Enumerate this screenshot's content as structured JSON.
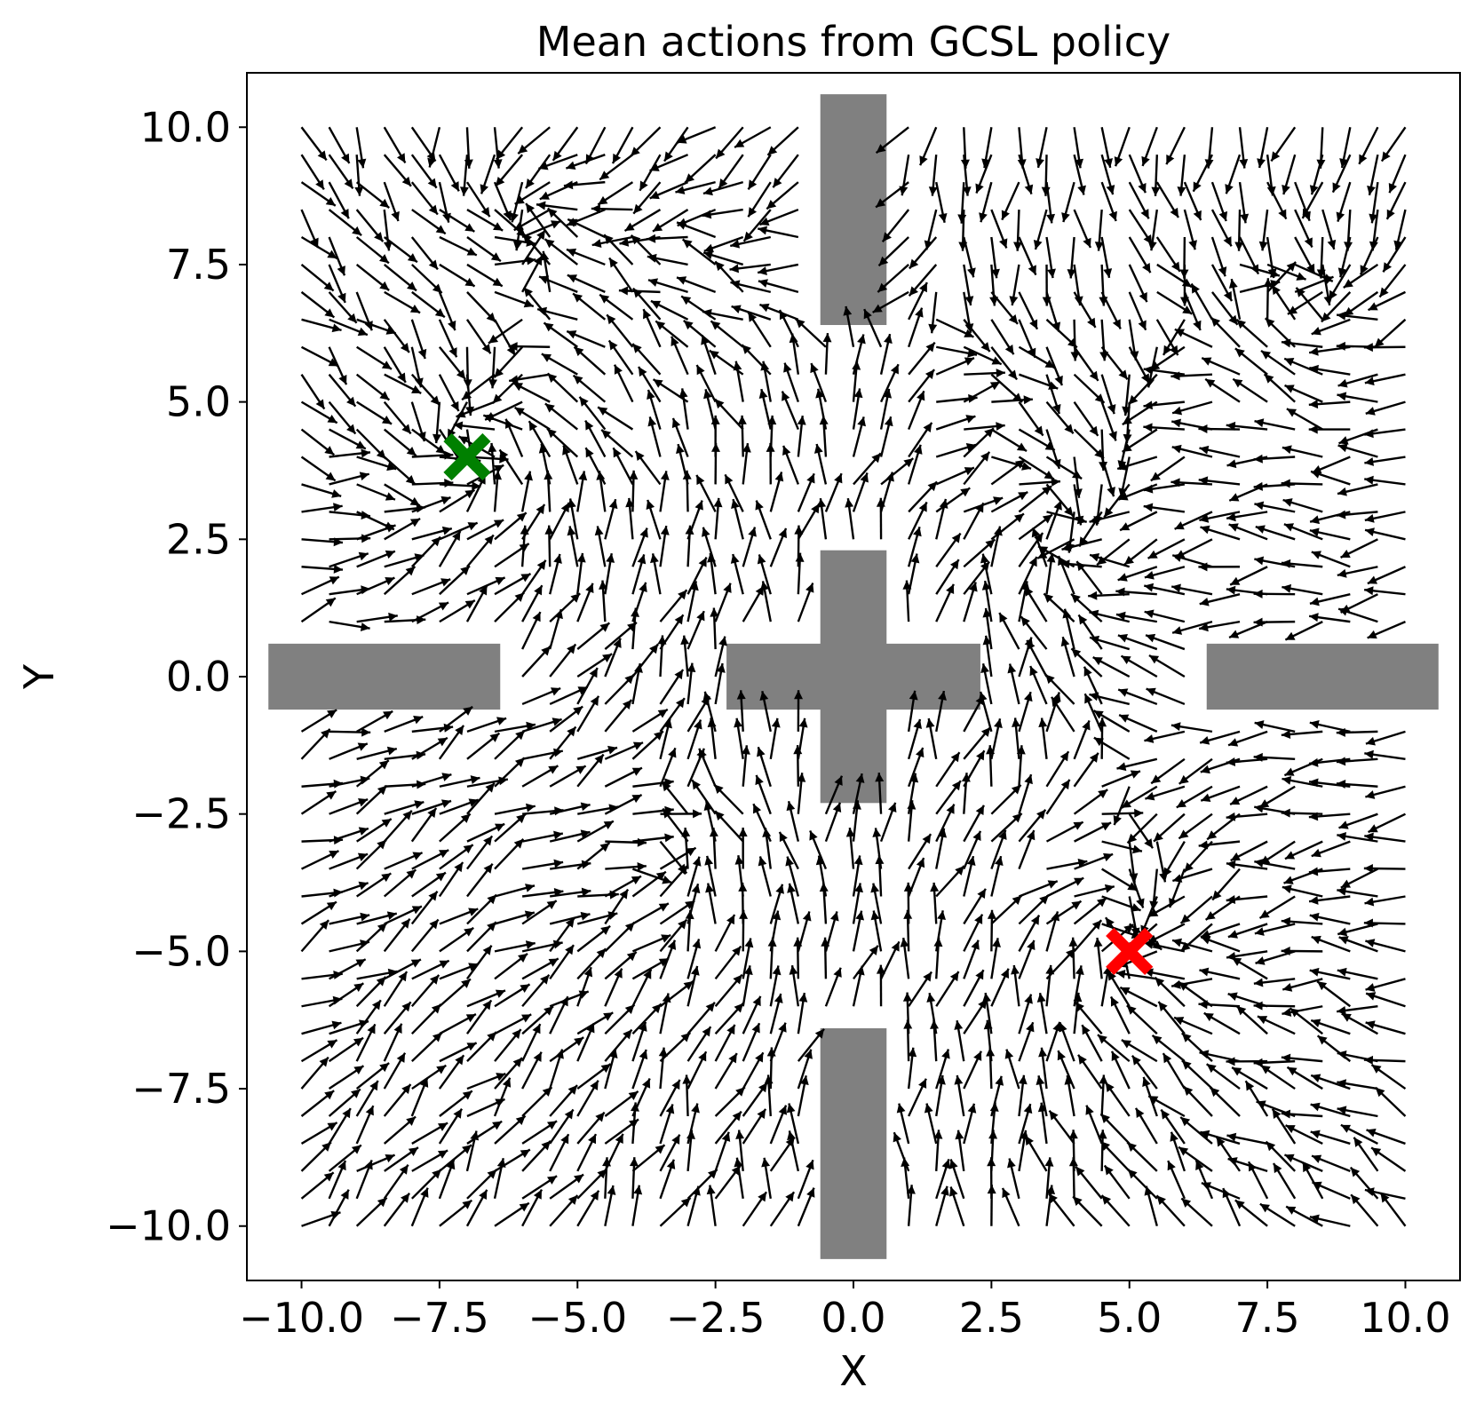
{
  "chart_data": {
    "type": "quiver",
    "title": "Mean actions from GCSL policy",
    "xlabel": "X",
    "ylabel": "Y",
    "xlim": [
      -10.99,
      10.99
    ],
    "ylim": [
      -10.99,
      10.99
    ],
    "xticks": [
      -10.0,
      -7.5,
      -5.0,
      -2.5,
      0.0,
      2.5,
      5.0,
      7.5,
      10.0
    ],
    "xtick_labels": [
      "−10.0",
      "−7.5",
      "−5.0",
      "−2.5",
      "0.0",
      "2.5",
      "5.0",
      "7.5",
      "10.0"
    ],
    "yticks": [
      10.0,
      7.5,
      5.0,
      2.5,
      0.0,
      -2.5,
      -5.0,
      -7.5,
      -10.0
    ],
    "ytick_labels": [
      "10.0",
      "7.5",
      "5.0",
      "2.5",
      "0.0",
      "−2.5",
      "−5.0",
      "−7.5",
      "−10.0"
    ],
    "grid": false,
    "grid_points": {
      "x_start": -10.0,
      "x_end": 10.0,
      "y_start": -10.0,
      "y_end": 10.0,
      "count_per_axis": 41
    },
    "arrow_length_data_units": 0.75,
    "obstacles": [
      {
        "x0": -10.6,
        "x1": -6.4,
        "y0": -0.6,
        "y1": 0.6
      },
      {
        "x0": -2.3,
        "x1": 2.3,
        "y0": -0.6,
        "y1": 0.6
      },
      {
        "x0": -0.6,
        "x1": 0.6,
        "y0": -2.3,
        "y1": 2.3
      },
      {
        "x0": -0.6,
        "x1": 0.6,
        "y0": 6.4,
        "y1": 10.6
      },
      {
        "x0": -0.6,
        "x1": 0.6,
        "y0": -10.6,
        "y1": -6.4
      },
      {
        "x0": 6.4,
        "x1": 10.6,
        "y0": -0.6,
        "y1": 0.6
      }
    ],
    "obstacle_color": "#808080",
    "arrow_color": "#000000",
    "markers": [
      {
        "x": -7.0,
        "y": 4.0,
        "symbol": "X",
        "color": "#008000",
        "role": "start"
      },
      {
        "x": 5.0,
        "y": -5.0,
        "symbol": "X",
        "color": "#ff0000",
        "role": "goal"
      }
    ],
    "attractors": [
      {
        "x": -7.0,
        "y": 4.0,
        "strength": 1.0
      },
      {
        "x": 5.0,
        "y": -5.0,
        "strength": 1.0
      },
      {
        "x": -6.0,
        "y": 8.5,
        "strength": 0.6
      },
      {
        "x": 3.8,
        "y": 2.5,
        "strength": 0.5
      },
      {
        "x": -3.3,
        "y": -3.7,
        "strength": 0.5
      },
      {
        "x": 8.6,
        "y": 7.0,
        "strength": 0.5
      }
    ]
  }
}
